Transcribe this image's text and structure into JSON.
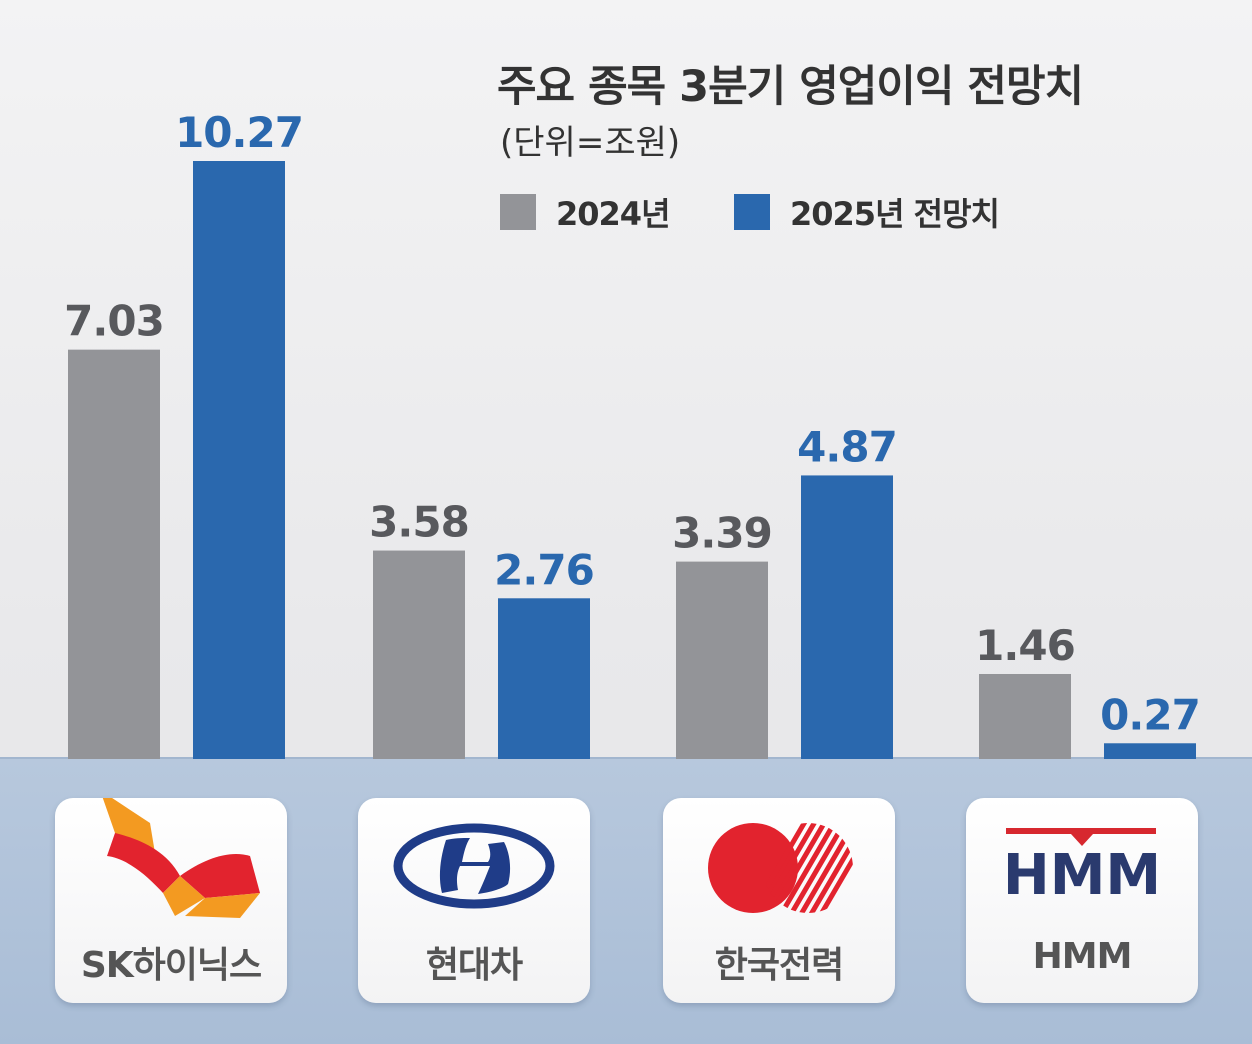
{
  "chart_data": {
    "type": "bar",
    "title": "주요 종목 3분기 영업이익 전망치",
    "subtitle": "(단위=조원)",
    "categories": [
      "SK하이닉스",
      "현대차",
      "한국전력",
      "HMM"
    ],
    "series": [
      {
        "name": "2024년",
        "values": [
          7.03,
          3.58,
          3.39,
          1.46
        ],
        "color": "#939498",
        "labels": [
          "7.03",
          "3.58",
          "3.39",
          "1.46"
        ]
      },
      {
        "name": "2025년 전망치",
        "values": [
          10.27,
          2.76,
          4.87,
          0.27
        ],
        "color": "#2a68ae",
        "labels": [
          "10.27",
          "2.76",
          "4.87",
          "0.27"
        ]
      }
    ],
    "ylim": [
      0,
      10.27
    ],
    "grid": false,
    "legend": "top-right"
  },
  "logos": {
    "hmm_text": "HMM"
  },
  "colors": {
    "sk_red": "#e2232e",
    "sk_orange": "#f39a21",
    "hyundai_blue": "#1f3c88",
    "kepco_red": "#e2232e",
    "hmm_navy": "#2a3a6e",
    "hmm_red": "#d7282f"
  },
  "icons": [
    "sk-butterfly-logo-icon",
    "hyundai-logo-icon",
    "kepco-logo-icon",
    "hmm-logo-icon"
  ]
}
